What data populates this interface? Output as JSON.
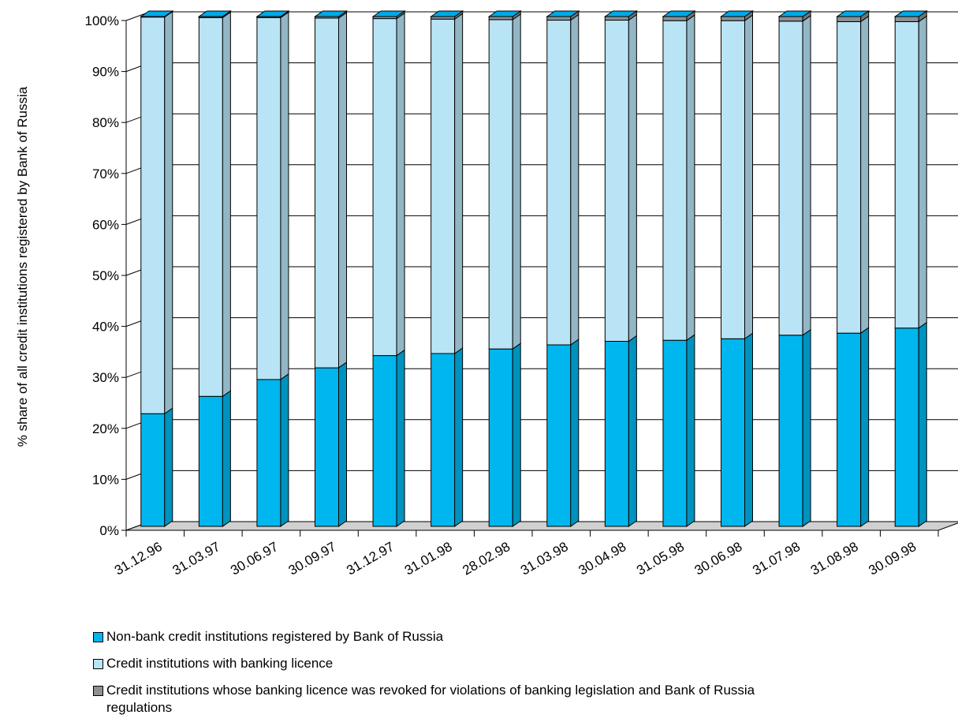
{
  "chart_data": {
    "type": "bar",
    "stacked": true,
    "three_d": true,
    "ylabel": "% share of all credit institutions registered by Bank of Russia",
    "ylim": [
      0,
      100
    ],
    "yticks": [
      "0%",
      "10%",
      "20%",
      "30%",
      "40%",
      "50%",
      "60%",
      "70%",
      "80%",
      "90%",
      "100%"
    ],
    "grid": true,
    "legend_position": "bottom-left",
    "categories": [
      "31.12.96",
      "31.03.97",
      "30.06.97",
      "30.09.97",
      "31.12.97",
      "31.01.98",
      "28.02.98",
      "31.03.98",
      "30.04.98",
      "31.05.98",
      "30.06.98",
      "31.07.98",
      "31.08.98",
      "30.09.98"
    ],
    "series": [
      {
        "name": "Non-bank credit institutions registered by Bank of Russia",
        "color": "#00b6ee",
        "values": [
          22.1,
          25.5,
          28.8,
          31.1,
          33.5,
          33.9,
          34.8,
          35.6,
          36.3,
          36.5,
          36.8,
          37.5,
          37.9,
          38.9
        ]
      },
      {
        "name": "Credit institutions with banking licence",
        "color": "#b8e4f6",
        "values": [
          77.8,
          74.3,
          71.0,
          68.6,
          66.1,
          65.6,
          64.6,
          63.7,
          63.0,
          62.7,
          62.4,
          61.6,
          61.1,
          60.1
        ]
      },
      {
        "name": "Credit institutions whose banking licence was revoked for violations of banking legislation and Bank of Russia regulations",
        "color": "#909090",
        "values": [
          0.1,
          0.2,
          0.2,
          0.3,
          0.4,
          0.5,
          0.6,
          0.7,
          0.7,
          0.8,
          0.8,
          0.9,
          1.0,
          1.0
        ]
      }
    ]
  }
}
